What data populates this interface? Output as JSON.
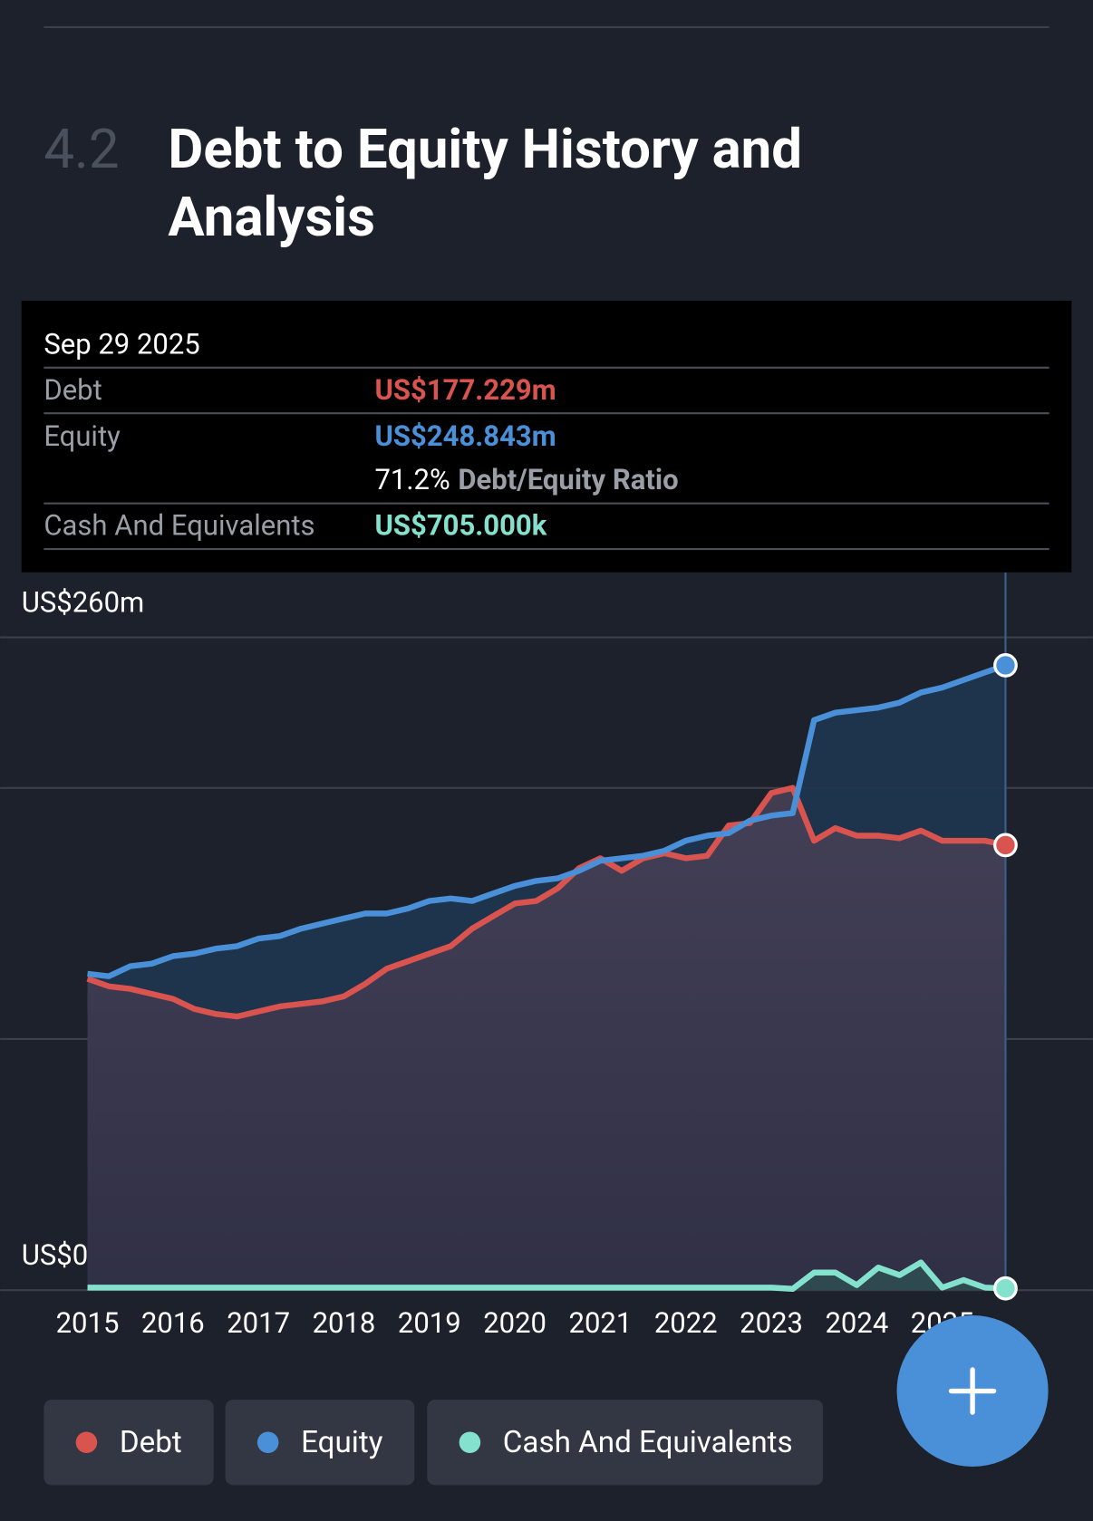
{
  "section": {
    "number": "4.2",
    "title_lines": [
      "Debt to Equity History and",
      "Analysis"
    ]
  },
  "tooltip": {
    "date": "Sep 29 2025",
    "rows": [
      {
        "label": "Debt",
        "value": "US$177.229m"
      },
      {
        "label": "Equity",
        "value": "US$248.843m"
      },
      {
        "label": "Cash And Equivalents",
        "value": "US$705.000k"
      }
    ],
    "ratio": "71.2%",
    "ratio_label": "Debt/Equity Ratio"
  },
  "chart_data": {
    "type": "line",
    "x": [
      2015,
      2015.25,
      2015.5,
      2015.75,
      2016,
      2016.25,
      2016.5,
      2016.75,
      2017,
      2017.25,
      2017.5,
      2017.75,
      2018,
      2018.25,
      2018.5,
      2018.75,
      2019,
      2019.25,
      2019.5,
      2019.75,
      2020,
      2020.25,
      2020.5,
      2020.75,
      2021,
      2021.25,
      2021.5,
      2021.75,
      2022,
      2022.25,
      2022.5,
      2022.75,
      2023,
      2023.25,
      2023.5,
      2023.75,
      2024,
      2024.25,
      2024.5,
      2024.75,
      2025,
      2025.25,
      2025.5,
      2025.74
    ],
    "series": [
      {
        "name": "Debt",
        "color": "#d9534f",
        "values": [
          124,
          121,
          120,
          118,
          116,
          112,
          110,
          109,
          111,
          113,
          114,
          115,
          117,
          122,
          128,
          131,
          134,
          137,
          144,
          149,
          154,
          155,
          160,
          168,
          172,
          167,
          172,
          174,
          172,
          173,
          185,
          186,
          198,
          200,
          179,
          184,
          181,
          181,
          180,
          183,
          179,
          179,
          179,
          177.229
        ]
      },
      {
        "name": "Equity",
        "color": "#4a90d9",
        "values": [
          126,
          125,
          129,
          130,
          133,
          134,
          136,
          137,
          140,
          141,
          144,
          146,
          148,
          150,
          150,
          152,
          155,
          156,
          155,
          158,
          161,
          163,
          164,
          167,
          171,
          172,
          173,
          175,
          179,
          181,
          182,
          187,
          189,
          190,
          227,
          230,
          231,
          232,
          234,
          238,
          240,
          243,
          246,
          248.843
        ]
      },
      {
        "name": "Cash And Equivalents",
        "color": "#84e1cd",
        "values": [
          1,
          1,
          1,
          1,
          1,
          1,
          1,
          1,
          1,
          1,
          1,
          1,
          1,
          1,
          1,
          1,
          1,
          1,
          1,
          1,
          1,
          1,
          1,
          1,
          1,
          1,
          1,
          1,
          1,
          1,
          1,
          1,
          1,
          0.5,
          7,
          7,
          2,
          9,
          6,
          11,
          1,
          4,
          1,
          0.705
        ]
      }
    ],
    "xlim": [
      2015,
      2025.74
    ],
    "xticks": [
      2015,
      2016,
      2017,
      2018,
      2019,
      2020,
      2021,
      2022,
      2023,
      2024,
      2025
    ],
    "ylim": [
      0,
      260
    ],
    "yticks": [
      {
        "value": 0,
        "label": "US$0"
      },
      {
        "value": 260,
        "label": "US$260m"
      }
    ],
    "grid_lines": [
      100,
      200
    ],
    "grid": true
  }
}
